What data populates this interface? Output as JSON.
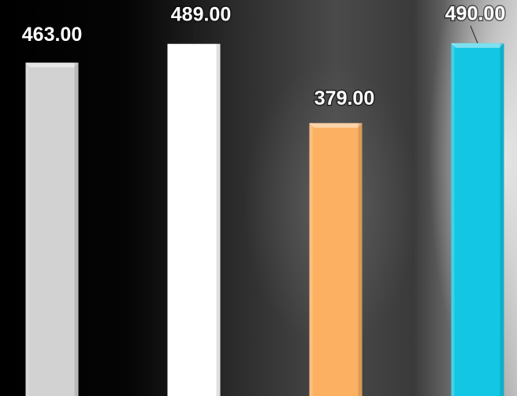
{
  "chart_data": {
    "type": "bar",
    "categories": [
      null,
      null,
      null,
      null
    ],
    "values": [
      463,
      489,
      379,
      490
    ],
    "value_labels": [
      "463.00",
      "489.00",
      "379.00",
      "490.00"
    ],
    "colors": [
      "#d2d2d2",
      "#ffffff",
      "#fbb062",
      "#12c6e4"
    ],
    "ylim": [
      0,
      550
    ]
  }
}
